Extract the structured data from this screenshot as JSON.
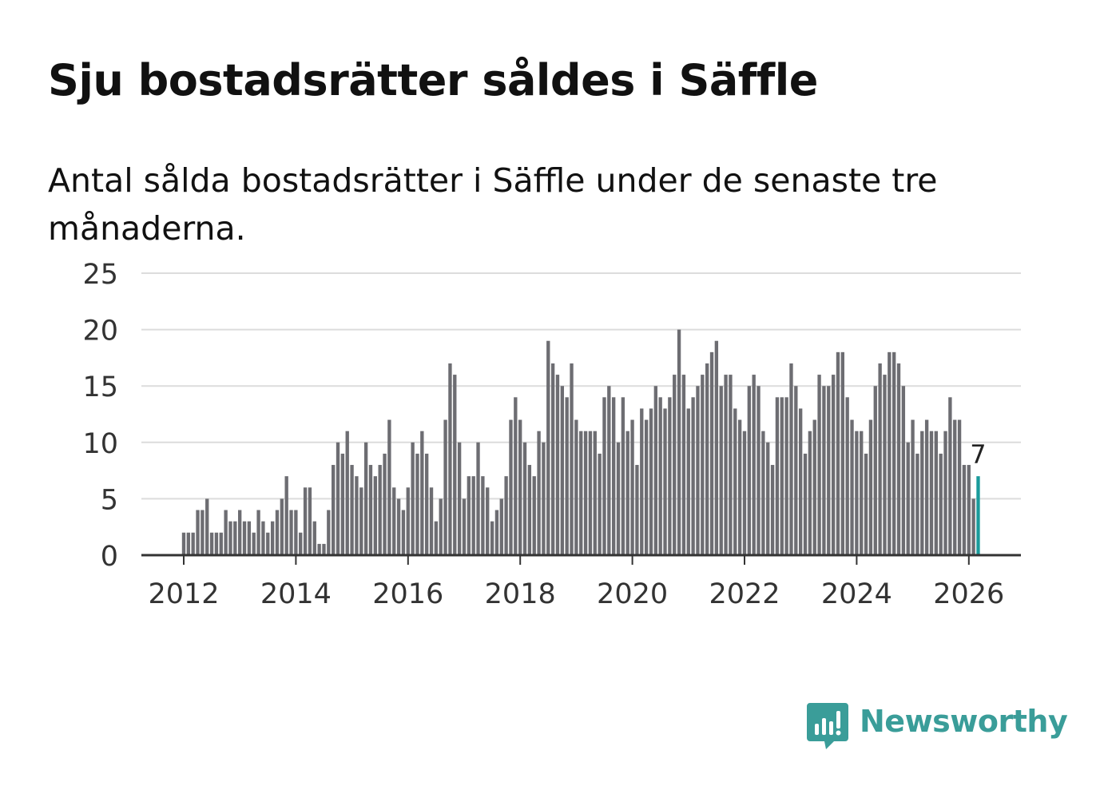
{
  "title": "Sju bostadsrätter såldes i Säffle",
  "subtitle": "Antal sålda bostadsrätter i Säffle under de senaste tre månaderna.",
  "brand": {
    "name": "Newsworthy",
    "icon": "newsworthy-logo-icon",
    "color": "#3a9d99"
  },
  "colors": {
    "bar": "#6d6d72",
    "highlight": "#1a9b9b",
    "grid": "#dcdcdc",
    "axis": "#333333",
    "tick_text": "#333333"
  },
  "chart_data": {
    "type": "bar",
    "title": "Sju bostadsrätter såldes i Säffle",
    "xlabel": "",
    "ylabel": "",
    "ylim": [
      0,
      25
    ],
    "yticks": [
      0,
      5,
      10,
      15,
      20,
      25
    ],
    "xticks": [
      "2012",
      "2014",
      "2016",
      "2018",
      "2020",
      "2022",
      "2024",
      "2026"
    ],
    "xlim": [
      "2011-03",
      "2026-12"
    ],
    "grid": true,
    "start_month": "2012-01",
    "end_month": "2026-02",
    "last_value_label": "7",
    "values": [
      2,
      2,
      2,
      4,
      4,
      5,
      2,
      2,
      2,
      4,
      3,
      3,
      4,
      3,
      3,
      2,
      4,
      3,
      2,
      3,
      4,
      5,
      7,
      4,
      4,
      2,
      6,
      6,
      3,
      1,
      1,
      4,
      8,
      10,
      9,
      11,
      8,
      7,
      6,
      10,
      8,
      7,
      8,
      9,
      12,
      6,
      5,
      4,
      6,
      10,
      9,
      11,
      9,
      6,
      3,
      5,
      12,
      17,
      16,
      10,
      5,
      7,
      7,
      10,
      7,
      6,
      3,
      4,
      5,
      7,
      12,
      14,
      12,
      10,
      8,
      7,
      11,
      10,
      19,
      17,
      16,
      15,
      14,
      17,
      12,
      11,
      11,
      11,
      11,
      9,
      14,
      15,
      14,
      10,
      14,
      11,
      12,
      8,
      13,
      12,
      13,
      15,
      14,
      13,
      14,
      16,
      20,
      16,
      13,
      14,
      15,
      16,
      17,
      18,
      19,
      15,
      16,
      16,
      13,
      12,
      11,
      15,
      16,
      15,
      11,
      10,
      8,
      14,
      14,
      14,
      17,
      15,
      13,
      9,
      11,
      12,
      16,
      15,
      15,
      16,
      18,
      18,
      14,
      12,
      11,
      11,
      9,
      12,
      15,
      17,
      16,
      18,
      18,
      17,
      15,
      10,
      12,
      9,
      11,
      12,
      11,
      11,
      9,
      11,
      14,
      12,
      12,
      8,
      8,
      5,
      7
    ]
  }
}
